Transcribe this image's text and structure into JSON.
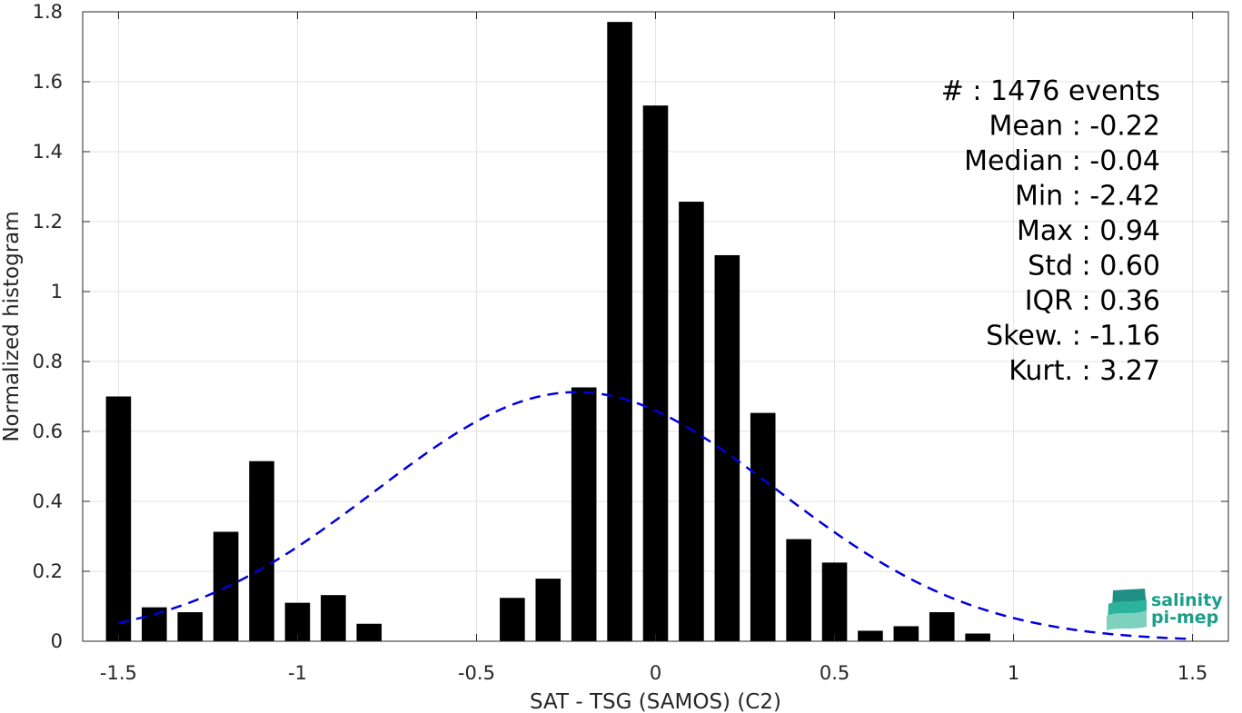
{
  "chart_data": {
    "type": "bar",
    "xlabel": "SAT - TSG (SAMOS) (C2)",
    "ylabel": "Normalized histogram",
    "xlim": [
      -1.6,
      1.6
    ],
    "ylim": [
      0,
      1.8
    ],
    "grid": true,
    "xticks": [
      -1.5,
      -1,
      -0.5,
      0,
      0.5,
      1,
      1.5
    ],
    "xtick_labels": [
      "-1.5",
      "-1",
      "-0.5",
      "0",
      "0.5",
      "1",
      "1.5"
    ],
    "yticks": [
      0,
      0.2,
      0.4,
      0.6,
      0.8,
      1,
      1.2,
      1.4,
      1.6,
      1.8
    ],
    "ytick_labels": [
      "0",
      "0.2",
      "0.4",
      "0.6",
      "0.8",
      "1",
      "1.2",
      "1.4",
      "1.6",
      "1.8"
    ],
    "bar_width": 0.07,
    "bars": [
      {
        "x": -1.5,
        "y": 0.7
      },
      {
        "x": -1.4,
        "y": 0.097
      },
      {
        "x": -1.3,
        "y": 0.083
      },
      {
        "x": -1.2,
        "y": 0.313
      },
      {
        "x": -1.1,
        "y": 0.515
      },
      {
        "x": -1.0,
        "y": 0.11
      },
      {
        "x": -0.9,
        "y": 0.132
      },
      {
        "x": -0.8,
        "y": 0.05
      },
      {
        "x": -0.4,
        "y": 0.124
      },
      {
        "x": -0.3,
        "y": 0.179
      },
      {
        "x": -0.2,
        "y": 0.726
      },
      {
        "x": -0.1,
        "y": 1.771
      },
      {
        "x": 0.0,
        "y": 1.532
      },
      {
        "x": 0.1,
        "y": 1.257
      },
      {
        "x": 0.2,
        "y": 1.104
      },
      {
        "x": 0.3,
        "y": 0.653
      },
      {
        "x": 0.4,
        "y": 0.292
      },
      {
        "x": 0.5,
        "y": 0.225
      },
      {
        "x": 0.6,
        "y": 0.03
      },
      {
        "x": 0.7,
        "y": 0.043
      },
      {
        "x": 0.8,
        "y": 0.083
      },
      {
        "x": 0.9,
        "y": 0.022
      }
    ],
    "fit_curve": {
      "type": "normal",
      "mean": -0.22,
      "std": 0.56,
      "x_range": [
        -1.5,
        1.5
      ],
      "color": "#0000dd",
      "style": "dashed"
    },
    "annotation_lines": [
      "#  : 1476 events",
      "Mean : -0.22",
      "Median : -0.04",
      "Min : -2.42",
      "Max : 0.94",
      "Std : 0.60",
      "IQR : 0.36",
      "Skew. : -1.16",
      "Kurt. : 3.27"
    ],
    "bar_color": "#000000"
  },
  "logo": {
    "line1": "salinity",
    "line2": "pi-mep"
  }
}
